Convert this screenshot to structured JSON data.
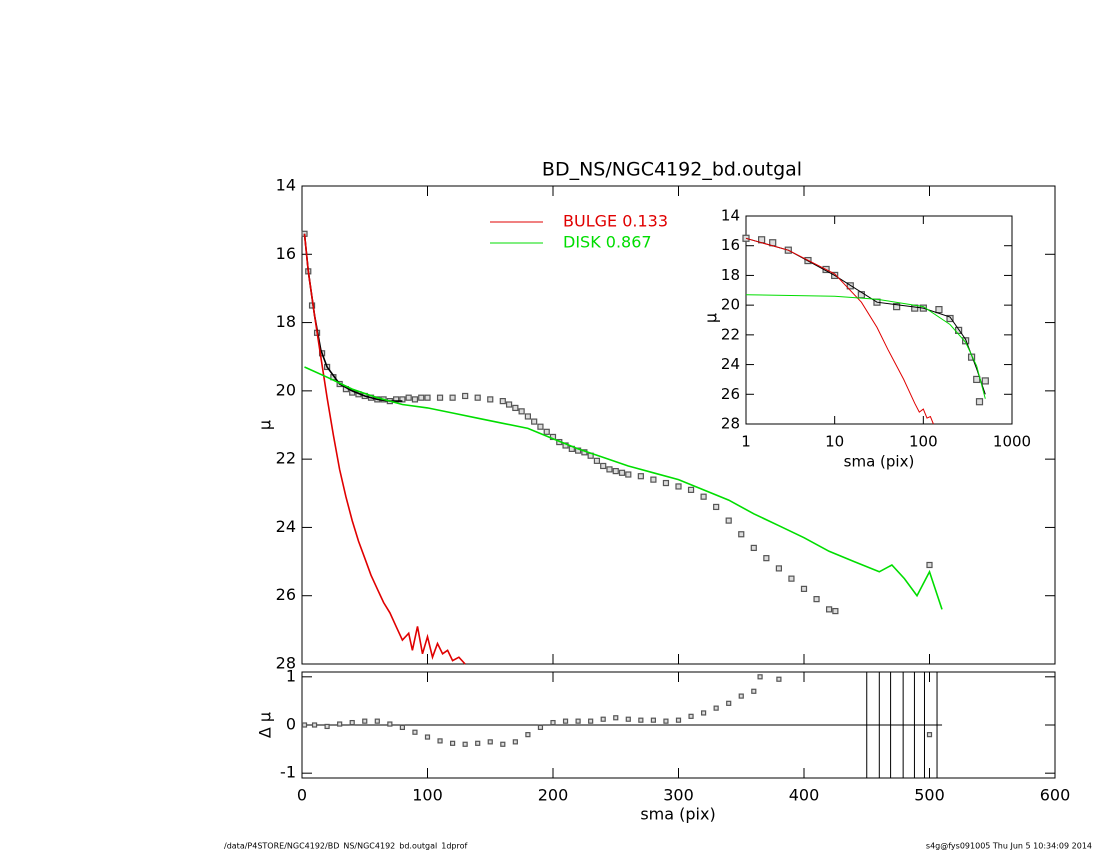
{
  "chart_data": [
    {
      "type": "line",
      "title": "BD_NS/NGC4192_bd.outgal",
      "ylabel": "μ",
      "xlim": [
        0,
        600
      ],
      "ylim": [
        28,
        14
      ],
      "yticks": [
        14,
        16,
        18,
        20,
        22,
        24,
        26,
        28
      ],
      "series": [
        {
          "style": "markers",
          "color": "#555555",
          "x": [
            2,
            5,
            8,
            12,
            16,
            20,
            25,
            30,
            35,
            40,
            45,
            50,
            55,
            60,
            65,
            70,
            75,
            80,
            85,
            90,
            95,
            100,
            110,
            120,
            130,
            140,
            150,
            160,
            165,
            170,
            175,
            180,
            185,
            190,
            195,
            200,
            205,
            210,
            215,
            220,
            225,
            230,
            235,
            240,
            245,
            250,
            255,
            260,
            270,
            280,
            290,
            300,
            310,
            320,
            330,
            340,
            350,
            360,
            370,
            380,
            390,
            400,
            410,
            420,
            425,
            500
          ],
          "values": [
            15.4,
            16.5,
            17.5,
            18.3,
            18.9,
            19.3,
            19.6,
            19.8,
            19.95,
            20.05,
            20.1,
            20.15,
            20.2,
            20.25,
            20.25,
            20.3,
            20.25,
            20.25,
            20.2,
            20.25,
            20.2,
            20.2,
            20.2,
            20.2,
            20.15,
            20.2,
            20.25,
            20.3,
            20.4,
            20.5,
            20.6,
            20.75,
            20.9,
            21.05,
            21.2,
            21.35,
            21.5,
            21.6,
            21.7,
            21.75,
            21.8,
            21.9,
            22.05,
            22.2,
            22.3,
            22.35,
            22.4,
            22.45,
            22.5,
            22.6,
            22.7,
            22.8,
            22.9,
            23.1,
            23.4,
            23.8,
            24.2,
            24.6,
            24.9,
            25.2,
            25.5,
            25.8,
            26.1,
            26.4,
            26.45,
            25.1
          ]
        },
        {
          "style": "line",
          "color": "#000000",
          "x": [
            2,
            5,
            10,
            15,
            20,
            30,
            40,
            50,
            60,
            70,
            80
          ],
          "values": [
            15.4,
            16.5,
            17.8,
            18.8,
            19.3,
            19.8,
            20.0,
            20.15,
            20.25,
            20.3,
            20.3
          ]
        },
        {
          "style": "line",
          "name": "BULGE  0.133",
          "color": "#e00000",
          "x": [
            2,
            5,
            10,
            15,
            20,
            25,
            30,
            35,
            40,
            45,
            50,
            55,
            60,
            65,
            70,
            75,
            80,
            85,
            88,
            92,
            96,
            100,
            104,
            108,
            112,
            116,
            120,
            125,
            130
          ],
          "values": [
            15.4,
            16.5,
            17.8,
            19.0,
            20.2,
            21.3,
            22.3,
            23.1,
            23.8,
            24.4,
            24.9,
            25.4,
            25.8,
            26.2,
            26.5,
            26.9,
            27.3,
            27.1,
            27.6,
            26.9,
            27.7,
            27.2,
            27.8,
            27.4,
            27.7,
            27.6,
            27.9,
            27.8,
            28.0
          ]
        },
        {
          "style": "line",
          "name": "DISK  0.867",
          "color": "#00dd00",
          "x": [
            2,
            20,
            40,
            60,
            80,
            100,
            120,
            140,
            160,
            180,
            200,
            220,
            240,
            260,
            280,
            300,
            320,
            340,
            360,
            380,
            400,
            420,
            440,
            460,
            470,
            480,
            490,
            500,
            510
          ],
          "values": [
            19.3,
            19.6,
            19.95,
            20.2,
            20.4,
            20.5,
            20.65,
            20.8,
            20.95,
            21.1,
            21.4,
            21.7,
            21.95,
            22.2,
            22.4,
            22.6,
            22.9,
            23.2,
            23.6,
            23.95,
            24.3,
            24.7,
            25.0,
            25.3,
            25.1,
            25.5,
            26.0,
            25.3,
            26.4
          ]
        }
      ]
    },
    {
      "type": "line",
      "xlabel": "sma (pix)",
      "ylabel": "μ",
      "xscale": "log",
      "xlim": [
        1,
        1000
      ],
      "xticks": [
        1,
        10,
        100,
        1000
      ],
      "ylim": [
        28,
        14
      ],
      "yticks": [
        14,
        16,
        18,
        20,
        22,
        24,
        26,
        28
      ],
      "series": [
        {
          "style": "markers",
          "color": "#555555",
          "x": [
            1,
            1.5,
            2,
            3,
            5,
            8,
            10,
            15,
            20,
            30,
            50,
            80,
            100,
            150,
            200,
            250,
            300,
            350,
            400,
            430,
            500
          ],
          "values": [
            15.5,
            15.6,
            15.8,
            16.3,
            17.0,
            17.6,
            18.0,
            18.7,
            19.3,
            19.8,
            20.1,
            20.2,
            20.2,
            20.3,
            20.9,
            21.7,
            22.4,
            23.5,
            25.0,
            26.5,
            25.1
          ]
        },
        {
          "style": "line",
          "color": "#000000",
          "x": [
            1,
            3,
            10,
            30,
            100,
            200,
            300,
            400,
            500
          ],
          "values": [
            15.5,
            16.3,
            18.0,
            19.8,
            20.2,
            20.8,
            22.3,
            24.3,
            26.0
          ]
        },
        {
          "style": "line",
          "color": "#e00000",
          "x": [
            1,
            3,
            10,
            20,
            30,
            40,
            60,
            80,
            90,
            100,
            110,
            120,
            130
          ],
          "values": [
            15.5,
            16.3,
            17.9,
            19.8,
            21.5,
            23.0,
            25.0,
            26.6,
            27.2,
            27.0,
            27.6,
            27.5,
            28.0
          ]
        },
        {
          "style": "line",
          "color": "#00dd00",
          "x": [
            1,
            10,
            30,
            100,
            200,
            300,
            400,
            500
          ],
          "values": [
            19.3,
            19.4,
            19.6,
            20.1,
            21.3,
            22.5,
            24.1,
            26.3
          ]
        }
      ]
    },
    {
      "type": "line",
      "xlabel": "sma (pix)",
      "ylabel": "Δ μ",
      "xlim": [
        0,
        600
      ],
      "xticks": [
        0,
        100,
        200,
        300,
        400,
        500,
        600
      ],
      "ylim": [
        -1.1,
        1.1
      ],
      "yticks": [
        -1,
        0,
        1
      ],
      "hline": {
        "y": 0,
        "x": [
          0,
          510
        ]
      },
      "vlines": [
        450,
        460,
        469,
        479,
        488,
        496,
        506
      ],
      "series": [
        {
          "style": "markers",
          "color": "#555555",
          "x": [
            2,
            10,
            20,
            30,
            40,
            50,
            60,
            70,
            80,
            90,
            100,
            110,
            120,
            130,
            140,
            150,
            160,
            170,
            180,
            190,
            200,
            210,
            220,
            230,
            240,
            250,
            260,
            270,
            280,
            290,
            300,
            310,
            320,
            330,
            340,
            350,
            360,
            365,
            380,
            500
          ],
          "values": [
            0.0,
            0.0,
            -0.03,
            0.02,
            0.05,
            0.08,
            0.08,
            0.02,
            -0.05,
            -0.15,
            -0.25,
            -0.33,
            -0.38,
            -0.4,
            -0.38,
            -0.35,
            -0.4,
            -0.35,
            -0.2,
            -0.05,
            0.05,
            0.08,
            0.08,
            0.08,
            0.12,
            0.15,
            0.12,
            0.1,
            0.1,
            0.08,
            0.1,
            0.18,
            0.25,
            0.35,
            0.45,
            0.6,
            0.7,
            1.0,
            0.95,
            -0.2
          ]
        }
      ]
    }
  ],
  "footer": {
    "left": "/data/P4STORE/NGC4192/BD_NS/NGC4192_bd.outgal_1dprof",
    "right": "s4g@fys091005  Thu Jun  5 10:34:09 2014"
  }
}
